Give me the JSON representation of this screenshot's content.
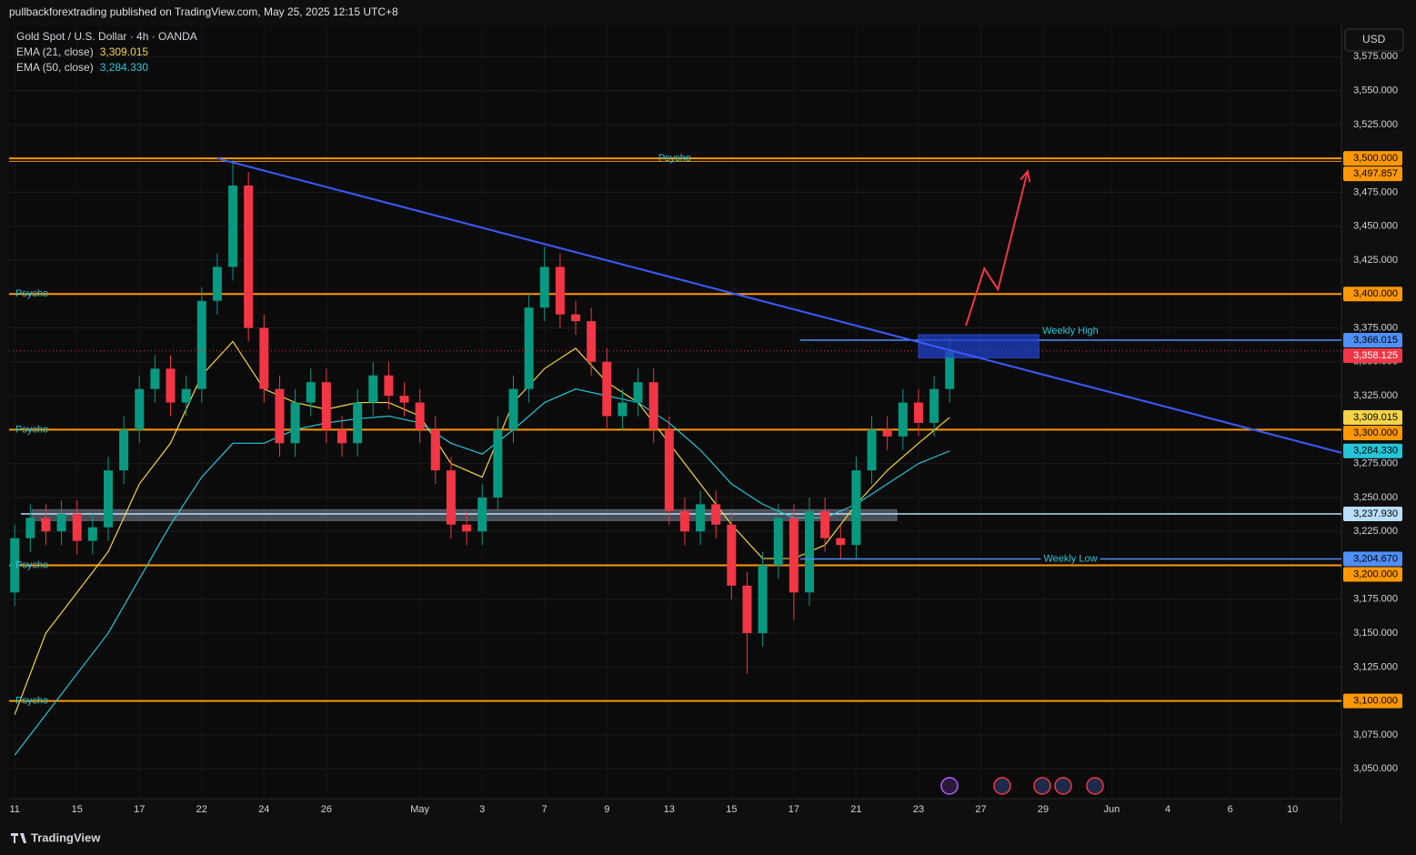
{
  "header": "pullbackforextrading published on TradingView.com, May 25, 2025 12:15 UTC+8",
  "footer": "TradingView",
  "currency": "USD",
  "chart_data": {
    "type": "candlestick",
    "title": "Gold Spot / U.S. Dollar · 4h · OANDA",
    "up_color": "#089981",
    "down_color": "#f23645",
    "x": [
      0,
      0.5,
      1,
      1.5,
      2,
      2.5,
      3,
      3.5,
      4,
      4.5,
      5,
      5.5,
      6,
      6.5,
      7,
      7.5,
      8,
      8.5,
      9,
      9.5,
      10,
      10.5,
      11,
      11.5,
      12,
      12.5,
      13,
      13.5,
      14,
      14.5,
      15,
      15.5,
      16,
      16.5,
      17,
      17.5,
      18,
      18.5,
      19,
      19.5,
      20,
      20.5,
      21,
      21.5,
      22,
      22.5,
      23,
      23.5,
      24,
      24.5,
      25,
      25.5,
      26,
      26.5,
      27,
      27.5,
      28,
      28.5,
      29,
      29.5,
      30
    ],
    "open": [
      3180,
      3220,
      3235,
      3225,
      3238,
      3218,
      3228,
      3270,
      3300,
      3330,
      3345,
      3320,
      3330,
      3395,
      3420,
      3480,
      3375,
      3330,
      3290,
      3320,
      3335,
      3300,
      3290,
      3320,
      3340,
      3325,
      3320,
      3300,
      3270,
      3230,
      3225,
      3250,
      3300,
      3330,
      3390,
      3420,
      3385,
      3380,
      3350,
      3310,
      3320,
      3335,
      3300,
      3240,
      3225,
      3245,
      3230,
      3185,
      3150,
      3200,
      3235,
      3180,
      3240,
      3220,
      3215,
      3270,
      3300,
      3295,
      3320,
      3305,
      3330
    ],
    "high": [
      3230,
      3245,
      3245,
      3248,
      3248,
      3238,
      3280,
      3310,
      3340,
      3355,
      3355,
      3340,
      3405,
      3430,
      3500,
      3490,
      3385,
      3340,
      3330,
      3345,
      3345,
      3310,
      3330,
      3350,
      3350,
      3335,
      3330,
      3310,
      3280,
      3240,
      3260,
      3310,
      3340,
      3400,
      3435,
      3430,
      3395,
      3390,
      3360,
      3330,
      3345,
      3345,
      3310,
      3250,
      3255,
      3255,
      3240,
      3195,
      3210,
      3245,
      3245,
      3250,
      3250,
      3230,
      3280,
      3310,
      3310,
      3330,
      3330,
      3340,
      3368
    ],
    "low": [
      3170,
      3210,
      3215,
      3215,
      3208,
      3208,
      3218,
      3260,
      3290,
      3320,
      3310,
      3310,
      3320,
      3385,
      3410,
      3365,
      3320,
      3280,
      3280,
      3310,
      3290,
      3280,
      3280,
      3310,
      3315,
      3310,
      3290,
      3260,
      3220,
      3215,
      3215,
      3240,
      3290,
      3320,
      3380,
      3375,
      3370,
      3340,
      3300,
      3300,
      3310,
      3290,
      3230,
      3215,
      3215,
      3220,
      3175,
      3120,
      3140,
      3190,
      3160,
      3170,
      3210,
      3205,
      3205,
      3260,
      3285,
      3285,
      3295,
      3295,
      3320
    ],
    "close": [
      3220,
      3235,
      3225,
      3238,
      3218,
      3228,
      3270,
      3300,
      3330,
      3345,
      3320,
      3330,
      3395,
      3420,
      3480,
      3375,
      3330,
      3290,
      3320,
      3335,
      3300,
      3290,
      3320,
      3340,
      3325,
      3320,
      3300,
      3270,
      3230,
      3225,
      3250,
      3300,
      3330,
      3390,
      3420,
      3385,
      3380,
      3350,
      3310,
      3320,
      3335,
      3300,
      3240,
      3225,
      3245,
      3230,
      3185,
      3150,
      3200,
      3235,
      3180,
      3240,
      3220,
      3215,
      3270,
      3300,
      3295,
      3320,
      3305,
      3330,
      3358
    ],
    "ema": [
      {
        "name": "EMA (21, close)",
        "color": "#f5d547",
        "value_label": "3,309.015",
        "x": [
          0,
          1,
          2,
          3,
          4,
          5,
          6,
          7,
          8,
          9,
          10,
          11,
          12,
          13,
          14,
          15,
          16,
          17,
          18,
          19,
          20,
          21,
          22,
          23,
          24,
          25,
          26,
          27,
          28,
          29,
          30
        ],
        "values": [
          3090,
          3150,
          3180,
          3210,
          3260,
          3290,
          3340,
          3365,
          3330,
          3320,
          3315,
          3320,
          3320,
          3310,
          3275,
          3265,
          3320,
          3345,
          3360,
          3335,
          3320,
          3290,
          3260,
          3230,
          3205,
          3205,
          3215,
          3245,
          3270,
          3290,
          3309.015
        ]
      },
      {
        "name": "EMA (50, close)",
        "color": "#26c6da",
        "value_label": "3,284.330",
        "x": [
          0,
          1,
          2,
          3,
          4,
          5,
          6,
          7,
          8,
          9,
          10,
          11,
          12,
          13,
          14,
          15,
          16,
          17,
          18,
          19,
          20,
          21,
          22,
          23,
          24,
          25,
          26,
          27,
          28,
          29,
          30
        ],
        "values": [
          3060,
          3090,
          3120,
          3150,
          3190,
          3230,
          3265,
          3290,
          3290,
          3300,
          3305,
          3308,
          3310,
          3305,
          3290,
          3282,
          3300,
          3320,
          3330,
          3325,
          3320,
          3305,
          3285,
          3260,
          3245,
          3235,
          3235,
          3245,
          3260,
          3275,
          3284.33
        ]
      }
    ],
    "xlim": [
      -0.18,
      42.57
    ],
    "xticks": [
      {
        "value": 0,
        "label": "11"
      },
      {
        "value": 2,
        "label": "15"
      },
      {
        "value": 4,
        "label": "17"
      },
      {
        "value": 6,
        "label": "22"
      },
      {
        "value": 8,
        "label": "24"
      },
      {
        "value": 10,
        "label": "26"
      },
      {
        "value": 13,
        "label": "May"
      },
      {
        "value": 15,
        "label": "3"
      },
      {
        "value": 17,
        "label": "7"
      },
      {
        "value": 19,
        "label": "9"
      },
      {
        "value": 21,
        "label": "13"
      },
      {
        "value": 23,
        "label": "15"
      },
      {
        "value": 25,
        "label": "17"
      },
      {
        "value": 27,
        "label": "21"
      },
      {
        "value": 29,
        "label": "23"
      },
      {
        "value": 31,
        "label": "27"
      },
      {
        "value": 33,
        "label": "29"
      },
      {
        "value": 35.2,
        "label": "Jun"
      },
      {
        "value": 37,
        "label": "4"
      },
      {
        "value": 39,
        "label": "6"
      },
      {
        "value": 41,
        "label": "10"
      }
    ],
    "ylim": [
      3028,
      3598
    ],
    "yticks": [
      {
        "value": 3575,
        "label": "3,575.000"
      },
      {
        "value": 3550,
        "label": "3,550.000"
      },
      {
        "value": 3525,
        "label": "3,525.000"
      },
      {
        "value": 3475,
        "label": "3,475.000"
      },
      {
        "value": 3450,
        "label": "3,450.000"
      },
      {
        "value": 3425,
        "label": "3,425.000"
      },
      {
        "value": 3375,
        "label": "3,375.000"
      },
      {
        "value": 3350,
        "label": "3,350.000"
      },
      {
        "value": 3325,
        "label": "3,325.000"
      },
      {
        "value": 3275,
        "label": "3,275.000"
      },
      {
        "value": 3250,
        "label": "3,250.000"
      },
      {
        "value": 3225,
        "label": "3,225.000"
      },
      {
        "value": 3175,
        "label": "3,175.000"
      },
      {
        "value": 3150,
        "label": "3,150.000"
      },
      {
        "value": 3125,
        "label": "3,125.000"
      },
      {
        "value": 3075,
        "label": "3,075.000"
      },
      {
        "value": 3050,
        "label": "3,050.000"
      }
    ],
    "grid": true,
    "level_color": "#ff9800",
    "levels": [
      {
        "name": "Psycho",
        "value": 3500,
        "label": "3,500.000"
      },
      {
        "name": "Psycho",
        "value": 3400,
        "label": "3,400.000"
      },
      {
        "name": "Psycho",
        "value": 3300,
        "label": "3,300.000"
      },
      {
        "name": "Psycho",
        "value": 3200,
        "label": "3,200.000"
      },
      {
        "name": "Psycho",
        "value": 3100,
        "label": "3,100.000"
      }
    ],
    "period_high": {
      "value": 3497.857,
      "label": "3,497.857"
    },
    "current_price": {
      "value": 3358.125,
      "label": "3,358.125",
      "color": "#f23645"
    },
    "weekly_high": {
      "name": "Weekly High",
      "value": 3366.015,
      "label": "3,366.015",
      "from": 25.2,
      "color": "#4f8ff7"
    },
    "weekly_low": {
      "name": "Weekly Low",
      "value": 3204.67,
      "label": "3,204.670",
      "from": 25.2,
      "color": "#4f8ff7"
    },
    "support": {
      "value": 3237.93,
      "label": "3,237.930",
      "from": 0.2,
      "zone": [
        3233,
        3241
      ],
      "zone_x": [
        0.55,
        28.3
      ],
      "color": "#bbdefb"
    },
    "trendline": {
      "x": [
        6.5,
        42.57
      ],
      "values": [
        3500,
        3283
      ],
      "color": "#3d5afe"
    },
    "box": {
      "x": [
        29,
        32.86
      ],
      "values": [
        3353,
        3370
      ],
      "color": "#1e40c8"
    },
    "arrow": {
      "x": [
        30.52,
        31.11,
        31.55,
        32.5
      ],
      "values": [
        3376.6,
        3418.8,
        3403.4,
        3490.5
      ],
      "color": "#f23645"
    }
  }
}
